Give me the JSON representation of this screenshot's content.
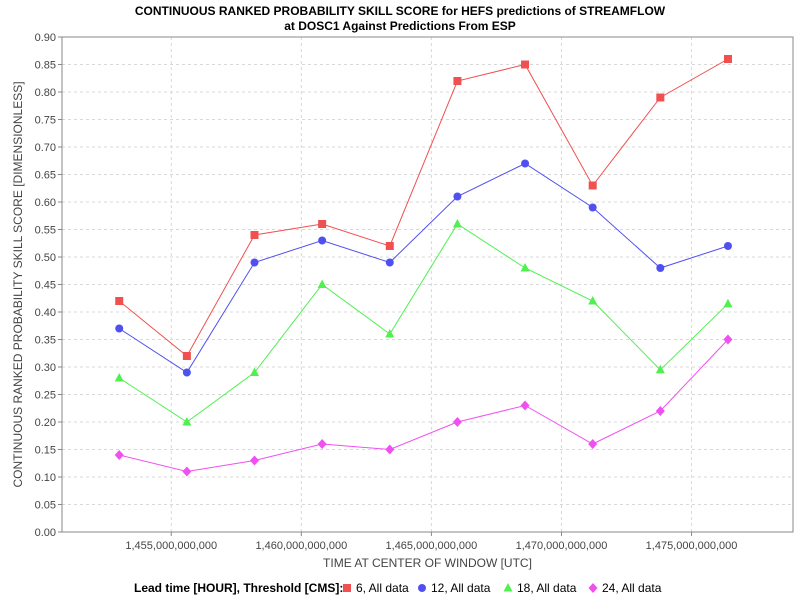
{
  "chart_data": {
    "type": "line",
    "title": "CONTINUOUS RANKED PROBABILITY SKILL SCORE for HEFS predictions of STREAMFLOW",
    "subtitle": "at DOSC1 Against Predictions From ESP",
    "xlabel": "TIME AT CENTER OF WINDOW [UTC]",
    "ylabel": "CONTINUOUS RANKED PROBABILITY SKILL SCORE [DIMENSIONLESS]",
    "xlim": [
      1450800000000,
      1478900000000
    ],
    "ylim": [
      0,
      0.9
    ],
    "x_ticks": [
      1455000000000,
      1460000000000,
      1465000000000,
      1470000000000,
      1475000000000
    ],
    "x_tick_labels": [
      "1,455,000,000,000",
      "1,460,000,000,000",
      "1,465,000,000,000",
      "1,470,000,000,000",
      "1,475,000,000,000"
    ],
    "y_ticks": [
      0.0,
      0.05,
      0.1,
      0.15,
      0.2,
      0.25,
      0.3,
      0.35,
      0.4,
      0.45,
      0.5,
      0.55,
      0.6,
      0.65,
      0.7,
      0.75,
      0.8,
      0.85,
      0.9
    ],
    "y_tick_labels": [
      "0.00",
      "0.05",
      "0.10",
      "0.15",
      "0.20",
      "0.25",
      "0.30",
      "0.35",
      "0.40",
      "0.45",
      "0.50",
      "0.55",
      "0.60",
      "0.65",
      "0.70",
      "0.75",
      "0.80",
      "0.85",
      "0.90"
    ],
    "grid": true,
    "legend_title": "Lead time [HOUR], Threshold [CMS]:",
    "legend_position": "bottom",
    "x": [
      1453000000000,
      1455600000000,
      1458200000000,
      1460800000000,
      1463400000000,
      1466000000000,
      1468600000000,
      1471200000000,
      1473800000000,
      1476400000000
    ],
    "series": [
      {
        "name": "6, All data",
        "color": "#f05050",
        "marker": "square",
        "values": [
          0.42,
          0.32,
          0.54,
          0.56,
          0.52,
          0.82,
          0.85,
          0.63,
          0.79,
          0.86
        ]
      },
      {
        "name": "12, All data",
        "color": "#5050f0",
        "marker": "circle",
        "values": [
          0.37,
          0.29,
          0.49,
          0.53,
          0.49,
          0.61,
          0.67,
          0.59,
          0.48,
          0.52
        ]
      },
      {
        "name": "18, All data",
        "color": "#50f050",
        "marker": "triangle",
        "values": [
          0.28,
          0.2,
          0.29,
          0.45,
          0.36,
          0.56,
          0.48,
          0.42,
          0.295,
          0.415
        ]
      },
      {
        "name": "24, All data",
        "color": "#f050f0",
        "marker": "diamond",
        "values": [
          0.14,
          0.11,
          0.13,
          0.16,
          0.15,
          0.2,
          0.23,
          0.16,
          0.22,
          0.35
        ]
      }
    ]
  }
}
